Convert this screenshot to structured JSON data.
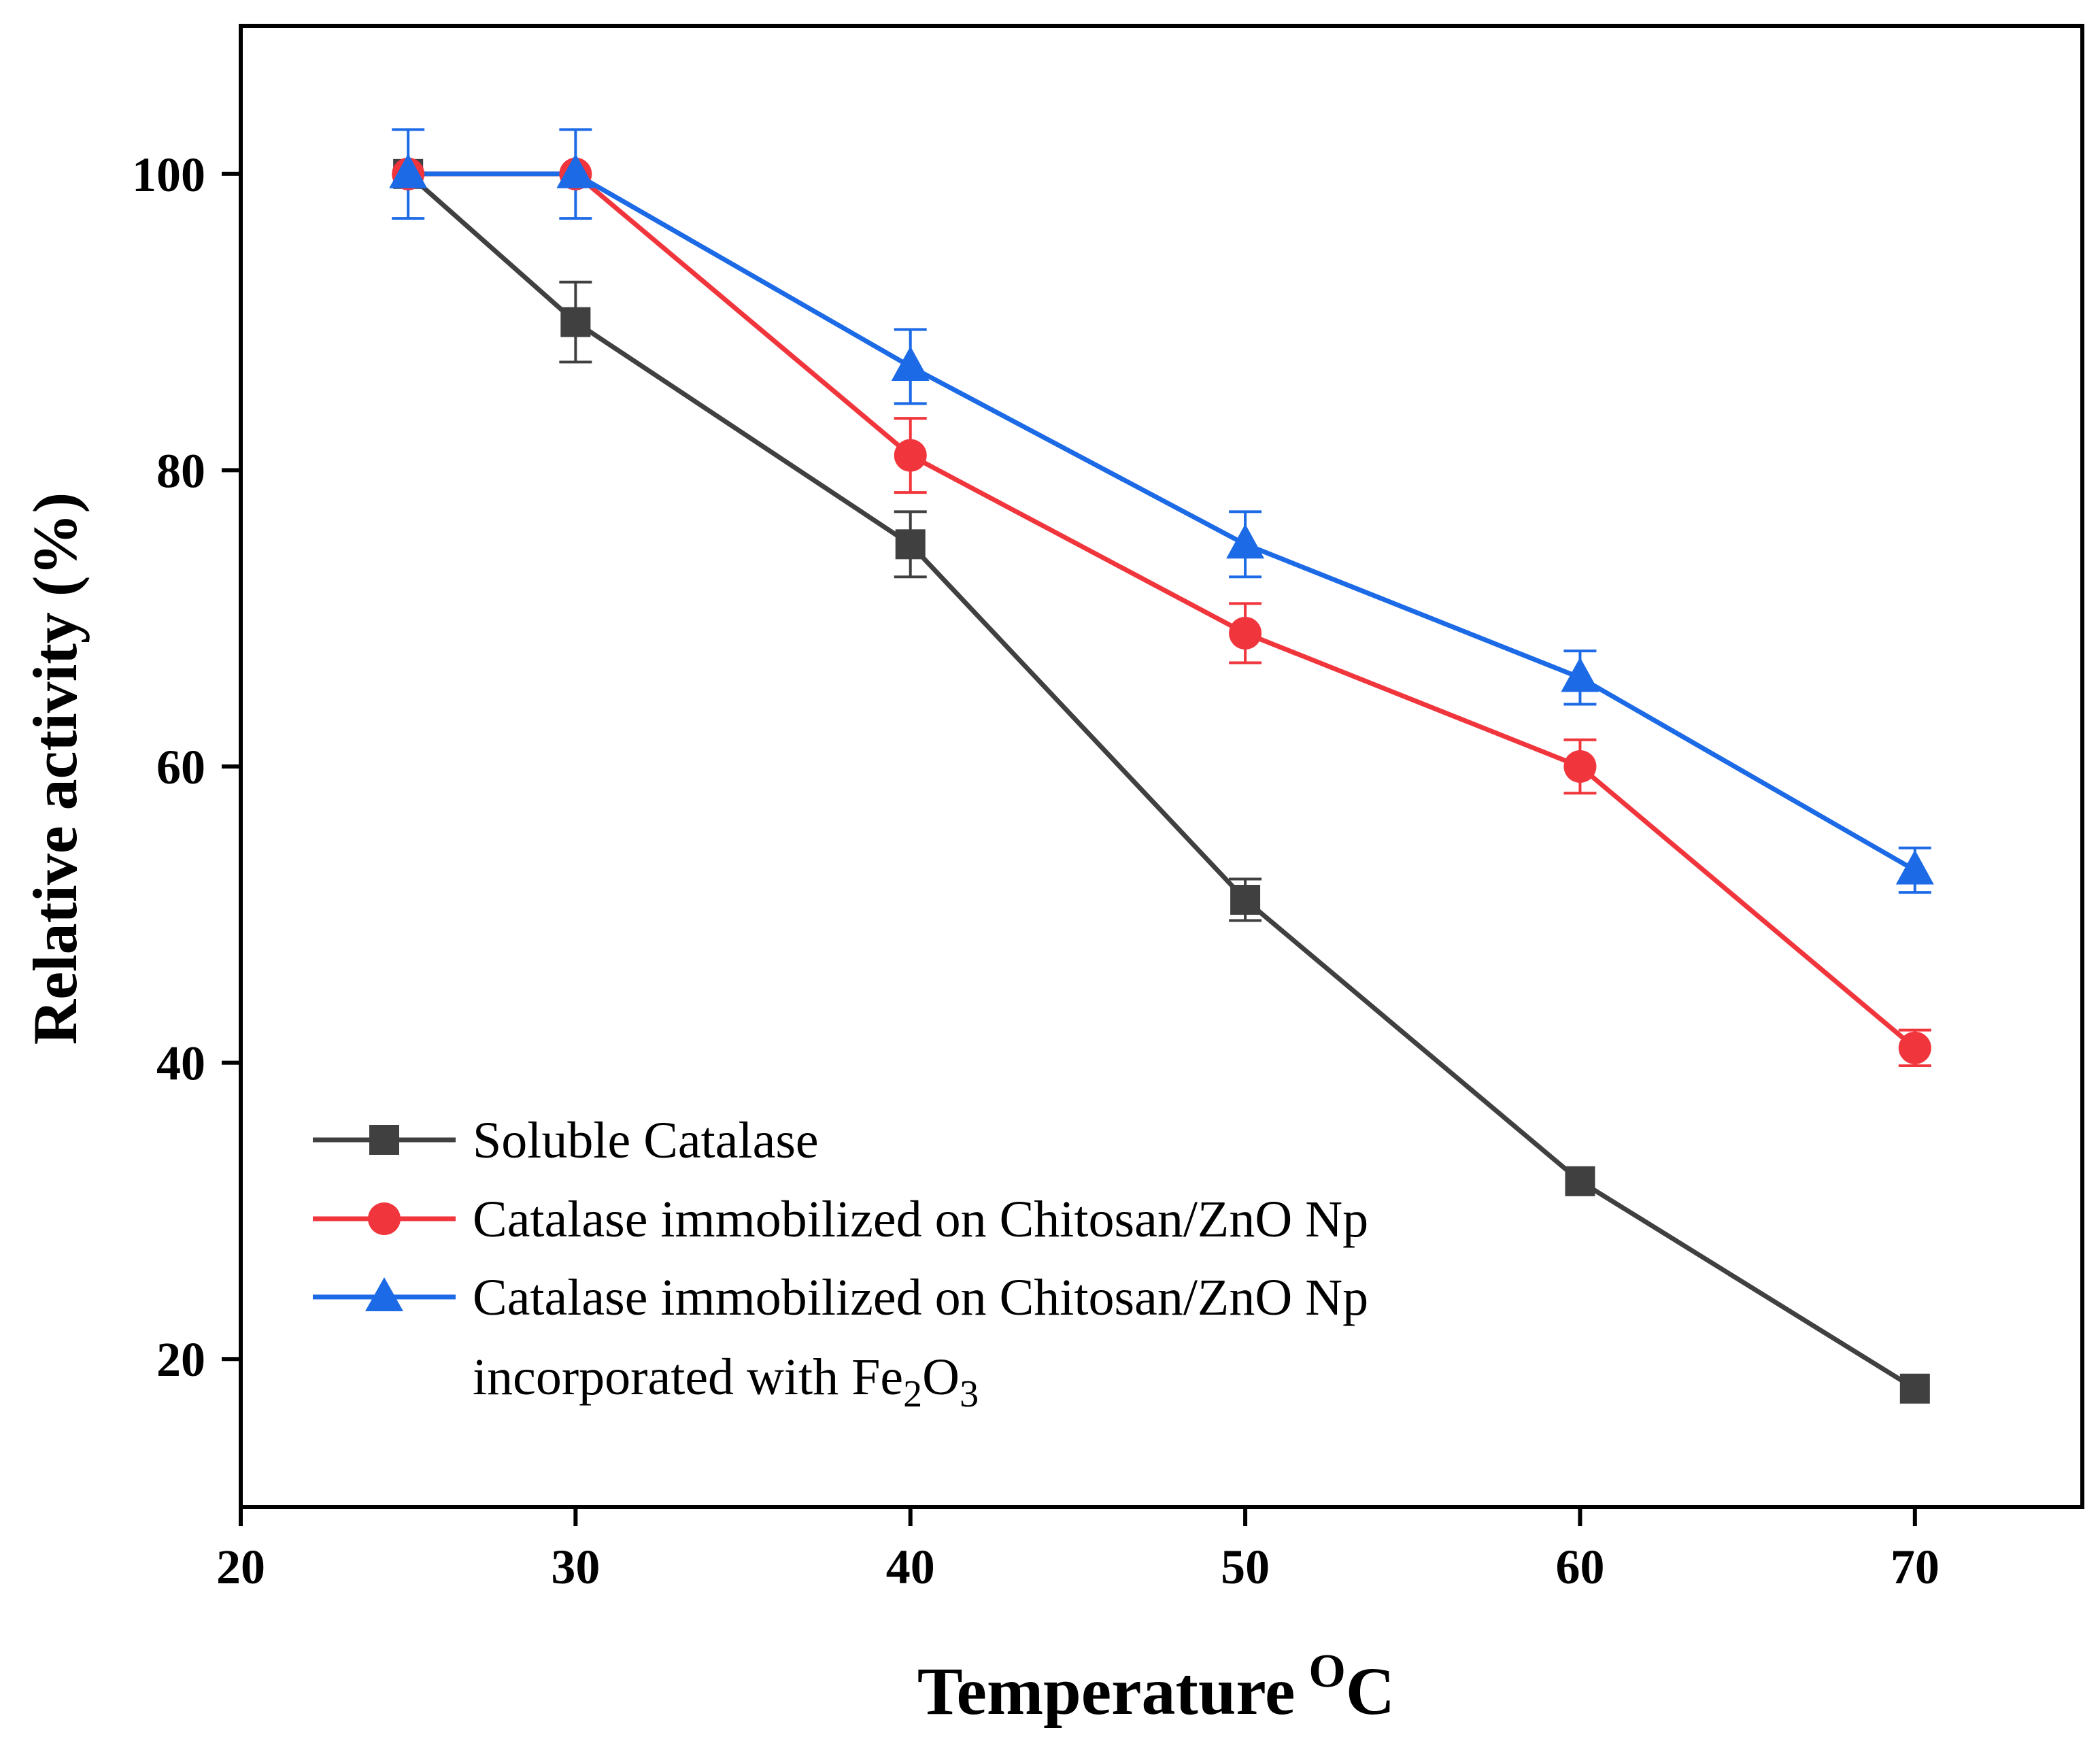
{
  "chart_data": {
    "type": "line",
    "title": "",
    "xlabel": "Temperature",
    "xlabel_superscript": "O",
    "xlabel_suffix": "C",
    "ylabel": "Relative activity (%)",
    "xlim": [
      20,
      75
    ],
    "ylim": [
      10,
      110
    ],
    "xticks": [
      20,
      30,
      40,
      50,
      60,
      70
    ],
    "yticks": [
      20,
      40,
      60,
      80,
      100
    ],
    "grid": false,
    "legend_position": "bottom-left",
    "series": [
      {
        "name": "Soluble Catalase",
        "marker": "square",
        "color": "#404040",
        "x": [
          25,
          30,
          40,
          50,
          60,
          70
        ],
        "values": [
          100,
          90,
          75,
          51,
          32,
          18
        ],
        "errors": [
          0,
          2.7,
          2.2,
          1.4,
          0,
          0
        ]
      },
      {
        "name": "Catalase immobilized on Chitosan/ZnO Np",
        "marker": "circle",
        "color": "#f0363c",
        "x": [
          25,
          30,
          40,
          50,
          60,
          70
        ],
        "values": [
          100,
          100,
          81,
          69,
          60,
          41
        ],
        "errors": [
          0,
          0,
          2.5,
          2.0,
          1.8,
          1.2
        ]
      },
      {
        "name": "Catalase immobilized on Chitosan/ZnO Np",
        "name_line2_prefix": "incorporated with Fe",
        "name_sub1": "2",
        "name_mid": "O",
        "name_sub2": "3",
        "marker": "triangle",
        "color": "#1c6ae6",
        "x": [
          25,
          30,
          40,
          50,
          60,
          70
        ],
        "values": [
          100,
          100,
          87,
          75,
          66,
          53
        ],
        "errors": [
          3.0,
          3.0,
          2.5,
          2.2,
          1.8,
          1.5
        ]
      }
    ]
  }
}
